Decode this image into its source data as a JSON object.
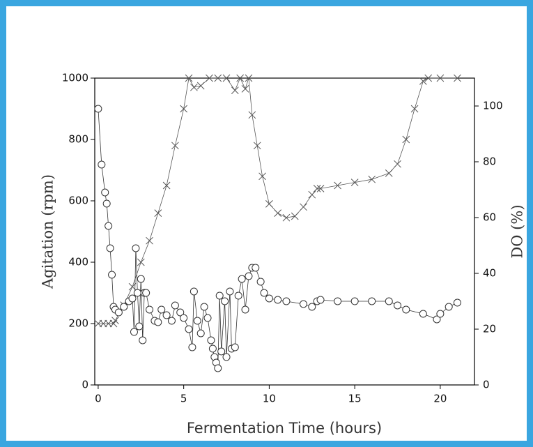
{
  "chart_data": {
    "type": "scatter-line",
    "x_label": "Fermentation Time (hours)",
    "y_label": "Agitation (rpm)",
    "y2_label": "DO (%)",
    "xlim": [
      -0.2,
      22
    ],
    "xticks": [
      0,
      5,
      10,
      15,
      20
    ],
    "ylim": [
      0,
      1000
    ],
    "yticks": [
      0,
      200,
      400,
      600,
      800,
      1000
    ],
    "y2lim": [
      0,
      110
    ],
    "y2ticks": [
      0,
      20,
      40,
      60,
      80,
      100
    ],
    "series": [
      {
        "name": "Agitation",
        "marker": "x",
        "color": "#555555",
        "x": [
          0,
          0.3,
          0.6,
          0.9,
          1.0,
          1.5,
          2.0,
          2.5,
          3.0,
          3.5,
          4.0,
          4.5,
          5.0,
          5.3,
          5.6,
          6.0,
          6.5,
          7.0,
          7.5,
          8.0,
          8.3,
          8.6,
          8.8,
          9.0,
          9.3,
          9.6,
          10.0,
          10.5,
          11.0,
          11.5,
          12.0,
          12.5,
          12.8,
          13.0,
          14.0,
          15.0,
          16.0,
          17.0,
          17.5,
          18.0,
          18.5,
          19.0,
          19.3,
          20.0,
          21.0
        ],
        "values": [
          200,
          200,
          200,
          200,
          210,
          260,
          320,
          400,
          470,
          560,
          650,
          780,
          900,
          1000,
          970,
          975,
          1000,
          1000,
          1000,
          960,
          1000,
          965,
          1000,
          880,
          780,
          680,
          590,
          560,
          545,
          550,
          580,
          620,
          640,
          640,
          650,
          660,
          670,
          690,
          720,
          800,
          900,
          990,
          1000,
          1000,
          1000
        ]
      },
      {
        "name": "DO",
        "marker": "o",
        "color": "#333333",
        "axis": "y2",
        "x": [
          0,
          0.2,
          0.4,
          0.5,
          0.6,
          0.7,
          0.8,
          0.9,
          1.0,
          1.2,
          1.5,
          1.8,
          2.0,
          2.1,
          2.2,
          2.3,
          2.4,
          2.5,
          2.6,
          2.7,
          2.8,
          3.0,
          3.3,
          3.5,
          3.7,
          4.0,
          4.3,
          4.5,
          4.8,
          5.0,
          5.3,
          5.5,
          5.6,
          5.8,
          6.0,
          6.2,
          6.4,
          6.6,
          6.7,
          6.8,
          6.9,
          7.0,
          7.1,
          7.2,
          7.4,
          7.5,
          7.7,
          7.8,
          8.0,
          8.2,
          8.4,
          8.6,
          8.8,
          9.0,
          9.2,
          9.5,
          9.7,
          10.0,
          10.5,
          11.0,
          12.0,
          12.5,
          12.8,
          13.0,
          14.0,
          15.0,
          16.0,
          17.0,
          17.5,
          18.0,
          19.0,
          19.8,
          20.0,
          20.5,
          21.0
        ],
        "values": [
          99,
          79,
          69,
          65,
          57,
          49,
          39.5,
          28,
          27,
          26,
          28,
          30,
          31,
          19,
          49,
          33,
          21,
          38,
          16,
          33,
          33,
          27,
          23,
          22.5,
          27,
          25,
          23,
          28.5,
          26,
          24,
          20,
          13.5,
          33.5,
          23,
          18.5,
          28,
          24,
          16,
          13,
          10,
          8,
          6,
          32,
          12,
          30,
          10,
          33.5,
          13,
          13.5,
          32,
          38,
          27,
          39,
          42,
          42,
          37,
          33,
          31,
          30.5,
          30,
          29,
          28,
          30,
          30.5,
          30,
          30,
          30,
          30,
          28.5,
          27,
          25.5,
          23.5,
          25.5,
          28,
          29.5
        ]
      }
    ]
  }
}
